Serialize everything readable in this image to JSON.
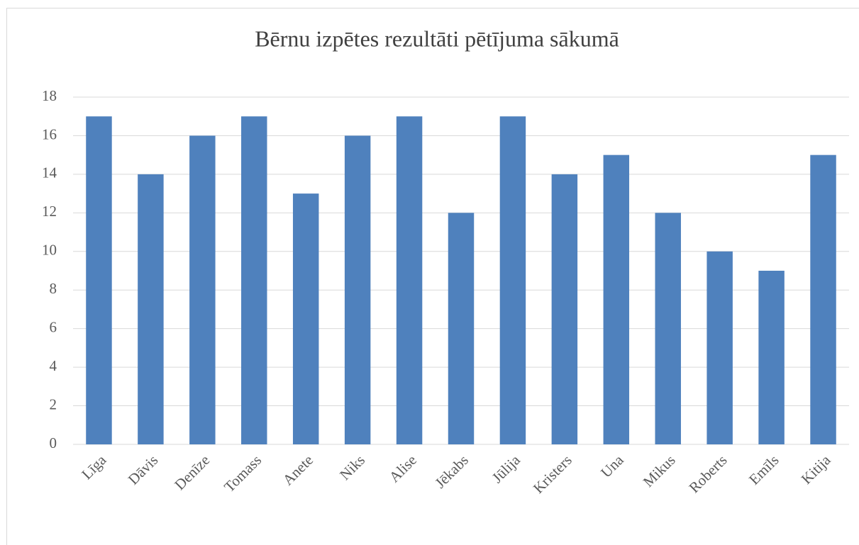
{
  "chart_data": {
    "type": "bar",
    "title": "Bērnu izpētes rezultāti pētījuma sākumā",
    "categories": [
      "Līga",
      "Dāvis",
      "Denīze",
      "Tomass",
      "Anete",
      "Niks",
      "Alise",
      "Jēkabs",
      "Jūlija",
      "Kristers",
      "Una",
      "Mikus",
      "Roberts",
      "Emīls",
      "Kitija"
    ],
    "values": [
      17,
      14,
      16,
      17,
      13,
      16,
      17,
      12,
      17,
      14,
      15,
      12,
      10,
      9,
      15
    ],
    "color": "#4f81bd",
    "ylim": [
      0,
      18
    ],
    "yticks": [
      0,
      2,
      4,
      6,
      8,
      10,
      12,
      14,
      16,
      18
    ],
    "grid": true
  }
}
